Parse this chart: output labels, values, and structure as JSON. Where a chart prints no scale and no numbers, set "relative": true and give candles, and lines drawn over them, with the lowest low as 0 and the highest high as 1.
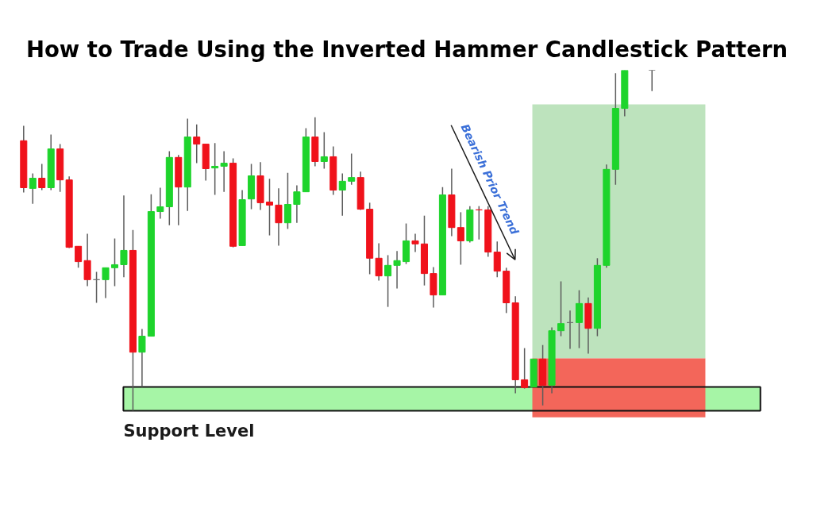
{
  "chart_data": {
    "type": "candlestick",
    "title": "How to Trade Using the Inverted Hammer Candlestick Pattern",
    "relative": true,
    "tick_labels": false,
    "categories": [
      null,
      null,
      null,
      null,
      null,
      null,
      null,
      null,
      null,
      null,
      null,
      null,
      null,
      null,
      null,
      null,
      null,
      null,
      null,
      null,
      null,
      null,
      null,
      null,
      null,
      null,
      null,
      null,
      null,
      null,
      null,
      null,
      null,
      null,
      null,
      null,
      null,
      null,
      null,
      null,
      null,
      null,
      null,
      null,
      null,
      null,
      null,
      null,
      null,
      null,
      null,
      null,
      null,
      null,
      null,
      null,
      null,
      null,
      null,
      null,
      null,
      null,
      null,
      null,
      null,
      null,
      null,
      null,
      null,
      null
    ],
    "ohlc": [
      [
        0.793,
        0.837,
        0.641,
        0.655
      ],
      [
        0.653,
        0.697,
        0.608,
        0.683
      ],
      [
        0.683,
        0.725,
        0.648,
        0.655
      ],
      [
        0.655,
        0.811,
        0.648,
        0.769
      ],
      [
        0.769,
        0.783,
        0.643,
        0.678
      ],
      [
        0.678,
        0.688,
        0.478,
        0.48
      ],
      [
        0.483,
        0.483,
        0.42,
        0.438
      ],
      [
        0.441,
        0.52,
        0.366,
        0.385
      ],
      [
        0.385,
        0.408,
        0.317,
        0.385
      ],
      [
        0.385,
        0.42,
        0.331,
        0.42
      ],
      [
        0.42,
        0.506,
        0.366,
        0.429
      ],
      [
        0.429,
        0.632,
        0.392,
        0.471
      ],
      [
        0.471,
        0.531,
        0,
        0.172
      ],
      [
        0.172,
        0.24,
        0.07,
        0.219
      ],
      [
        0.219,
        0.636,
        0.219,
        0.585
      ],
      [
        0.585,
        0.655,
        0.564,
        0.599
      ],
      [
        0.599,
        0.762,
        0.545,
        0.744
      ],
      [
        0.744,
        0.751,
        0.545,
        0.657
      ],
      [
        0.657,
        0.858,
        0.587,
        0.804
      ],
      [
        0.804,
        0.841,
        0.727,
        0.783
      ],
      [
        0.783,
        0.783,
        0.676,
        0.711
      ],
      [
        0.713,
        0.786,
        0.634,
        0.718
      ],
      [
        0.718,
        0.762,
        0.643,
        0.727
      ],
      [
        0.727,
        0.741,
        0.48,
        0.483
      ],
      [
        0.485,
        0.648,
        0.485,
        0.62
      ],
      [
        0.622,
        0.725,
        0.592,
        0.69
      ],
      [
        0.69,
        0.73,
        0.59,
        0.611
      ],
      [
        0.613,
        0.681,
        0.515,
        0.604
      ],
      [
        0.604,
        0.653,
        0.485,
        0.552
      ],
      [
        0.552,
        0.699,
        0.534,
        0.606
      ],
      [
        0.606,
        0.662,
        0.552,
        0.643
      ],
      [
        0.643,
        0.83,
        0.643,
        0.804
      ],
      [
        0.804,
        0.862,
        0.718,
        0.732
      ],
      [
        0.732,
        0.818,
        0.711,
        0.746
      ],
      [
        0.746,
        0.776,
        0.634,
        0.648
      ],
      [
        0.648,
        0.697,
        0.573,
        0.674
      ],
      [
        0.674,
        0.755,
        0.664,
        0.685
      ],
      [
        0.685,
        0.702,
        0.59,
        0.592
      ],
      [
        0.592,
        0.611,
        0.401,
        0.448
      ],
      [
        0.448,
        0.492,
        0.382,
        0.396
      ],
      [
        0.396,
        0.457,
        0.305,
        0.427
      ],
      [
        0.427,
        0.469,
        0.359,
        0.441
      ],
      [
        0.438,
        0.55,
        0.431,
        0.499
      ],
      [
        0.499,
        0.52,
        0.466,
        0.49
      ],
      [
        0.49,
        0.573,
        0.368,
        0.403
      ],
      [
        0.403,
        0.422,
        0.303,
        0.34
      ],
      [
        0.34,
        0.657,
        0.34,
        0.634
      ],
      [
        0.634,
        0.711,
        0.513,
        0.538
      ],
      [
        0.538,
        0.583,
        0.429,
        0.499
      ],
      [
        0.499,
        0.601,
        0.494,
        0.59
      ],
      [
        0.59,
        0.601,
        0.503,
        0.59
      ],
      [
        0.59,
        0.601,
        0.452,
        0.466
      ],
      [
        0.466,
        0.497,
        0.392,
        0.41
      ],
      [
        0.41,
        0.42,
        0.287,
        0.317
      ],
      [
        0.317,
        0.336,
        0.051,
        0.091
      ],
      [
        0.091,
        0.184,
        0.065,
        0.068
      ],
      [
        0.07,
        0.152,
        0.07,
        0.152
      ],
      [
        0.152,
        0.193,
        0.016,
        0.075
      ],
      [
        0.075,
        0.245,
        0.051,
        0.235
      ],
      [
        0.235,
        0.38,
        0.219,
        0.256
      ],
      [
        0.259,
        0.294,
        0.182,
        0.259
      ],
      [
        0.259,
        0.354,
        0.184,
        0.315
      ],
      [
        0.315,
        0.333,
        0.168,
        0.242
      ],
      [
        0.242,
        0.448,
        0.219,
        0.427
      ],
      [
        0.427,
        0.723,
        0.42,
        0.709
      ],
      [
        0.709,
        0.991,
        0.664,
        0.888
      ],
      [
        0.888,
        1,
        0.865,
        1
      ],
      null,
      null,
      [
        1,
        1,
        0.939,
        1
      ]
    ],
    "colors": [
      "#f0121b",
      "#1ed42c",
      "#f0121b",
      "#1ed42c",
      "#f0121b",
      "#f0121b",
      "#f0121b",
      "#f0121b",
      "#707070",
      "#1ed42c",
      "#1ed42c",
      "#1ed42c",
      "#f0121b",
      "#1ed42c",
      "#1ed42c",
      "#1ed42c",
      "#1ed42c",
      "#f0121b",
      "#1ed42c",
      "#f0121b",
      "#f0121b",
      "#1ed42c",
      "#1ed42c",
      "#f0121b",
      "#1ed42c",
      "#1ed42c",
      "#f0121b",
      "#f0121b",
      "#f0121b",
      "#1ed42c",
      "#1ed42c",
      "#1ed42c",
      "#f0121b",
      "#1ed42c",
      "#f0121b",
      "#1ed42c",
      "#1ed42c",
      "#f0121b",
      "#f0121b",
      "#f0121b",
      "#1ed42c",
      "#1ed42c",
      "#1ed42c",
      "#f0121b",
      "#f0121b",
      "#f0121b",
      "#1ed42c",
      "#f0121b",
      "#f0121b",
      "#1ed42c",
      "#f0121b",
      "#f0121b",
      "#f0121b",
      "#f0121b",
      "#f0121b",
      "#f0121b",
      "#1ed42c",
      "#f0121b",
      "#1ed42c",
      "#1ed42c",
      "#707070",
      "#1ed42c",
      "#f0121b",
      "#1ed42c",
      "#1ed42c",
      "#1ed42c",
      "#1ed42c",
      null,
      null,
      "#707070"
    ],
    "bands": [
      {
        "axis": "y",
        "from": 0,
        "to": 0.07,
        "label": "Support Level",
        "color": "#a6f5a6"
      },
      {
        "axis": "y",
        "from": 0.154,
        "to": 0.9,
        "color": "#bde3bd"
      },
      {
        "axis": "y",
        "from": -0.019,
        "to": 0.154,
        "color": "#f3665a"
      }
    ],
    "annotations": [
      "Bearish Prior Trend"
    ]
  }
}
